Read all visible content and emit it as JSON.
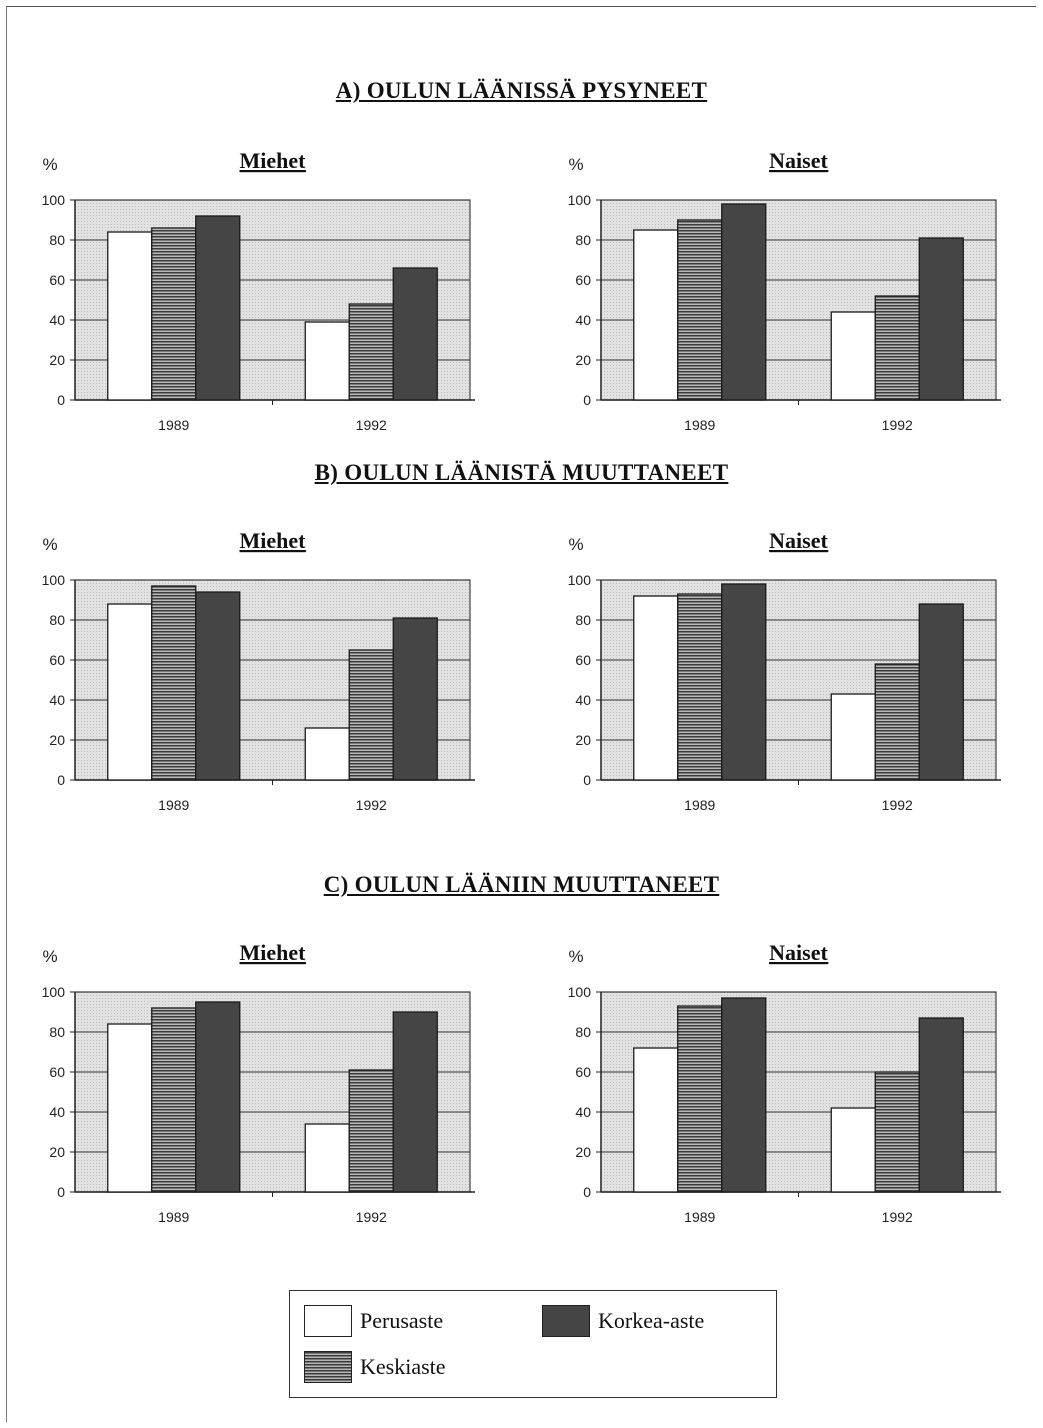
{
  "sections": [
    {
      "title": "A) OULUN LÄÄNISSÄ PYSYNEET",
      "charts": [
        {
          "subtitle": "Miehet",
          "ylabel": "%"
        },
        {
          "subtitle": "Naiset",
          "ylabel": "%"
        }
      ]
    },
    {
      "title": "B) OULUN LÄÄNISTÄ MUUTTANEET",
      "charts": [
        {
          "subtitle": "Miehet",
          "ylabel": "%"
        },
        {
          "subtitle": "Naiset",
          "ylabel": "%"
        }
      ]
    },
    {
      "title": "C) OULUN LÄÄNIIN MUUTTANEET",
      "charts": [
        {
          "subtitle": "Miehet",
          "ylabel": "%"
        },
        {
          "subtitle": "Naiset",
          "ylabel": "%"
        }
      ]
    }
  ],
  "legend": {
    "items": [
      {
        "label": "Perusaste",
        "color": "#ffffff"
      },
      {
        "label": "Keskiaste",
        "color": "#8a8a8a"
      },
      {
        "label": "Korkea-aste",
        "color": "#454545"
      }
    ]
  },
  "chart_data": [
    {
      "type": "bar",
      "section": "A) OULUN LÄÄNISSÄ PYSYNEET",
      "title": "Miehet",
      "ylabel": "%",
      "categories": [
        "1989",
        "1992"
      ],
      "ylim": [
        0,
        100
      ],
      "yticks": [
        0,
        20,
        40,
        60,
        80,
        100
      ],
      "grid": true,
      "series": [
        {
          "name": "Perusaste",
          "values": [
            84,
            39
          ]
        },
        {
          "name": "Keskiaste",
          "values": [
            86,
            48
          ]
        },
        {
          "name": "Korkea-aste",
          "values": [
            92,
            66
          ]
        }
      ]
    },
    {
      "type": "bar",
      "section": "A) OULUN LÄÄNISSÄ PYSYNEET",
      "title": "Naiset",
      "ylabel": "%",
      "categories": [
        "1989",
        "1992"
      ],
      "ylim": [
        0,
        100
      ],
      "yticks": [
        0,
        20,
        40,
        60,
        80,
        100
      ],
      "grid": true,
      "series": [
        {
          "name": "Perusaste",
          "values": [
            85,
            44
          ]
        },
        {
          "name": "Keskiaste",
          "values": [
            90,
            52
          ]
        },
        {
          "name": "Korkea-aste",
          "values": [
            98,
            81
          ]
        }
      ]
    },
    {
      "type": "bar",
      "section": "B) OULUN LÄÄNISTÄ MUUTTANEET",
      "title": "Miehet",
      "ylabel": "%",
      "categories": [
        "1989",
        "1992"
      ],
      "ylim": [
        0,
        100
      ],
      "yticks": [
        0,
        20,
        40,
        60,
        80,
        100
      ],
      "grid": true,
      "series": [
        {
          "name": "Perusaste",
          "values": [
            88,
            26
          ]
        },
        {
          "name": "Keskiaste",
          "values": [
            97,
            65
          ]
        },
        {
          "name": "Korkea-aste",
          "values": [
            94,
            81
          ]
        }
      ]
    },
    {
      "type": "bar",
      "section": "B) OULUN LÄÄNISTÄ MUUTTANEET",
      "title": "Naiset",
      "ylabel": "%",
      "categories": [
        "1989",
        "1992"
      ],
      "ylim": [
        0,
        100
      ],
      "yticks": [
        0,
        20,
        40,
        60,
        80,
        100
      ],
      "grid": true,
      "series": [
        {
          "name": "Perusaste",
          "values": [
            92,
            43
          ]
        },
        {
          "name": "Keskiaste",
          "values": [
            93,
            58
          ]
        },
        {
          "name": "Korkea-aste",
          "values": [
            98,
            88
          ]
        }
      ]
    },
    {
      "type": "bar",
      "section": "C) OULUN LÄÄNIIN MUUTTANEET",
      "title": "Miehet",
      "ylabel": "%",
      "categories": [
        "1989",
        "1992"
      ],
      "ylim": [
        0,
        100
      ],
      "yticks": [
        0,
        20,
        40,
        60,
        80,
        100
      ],
      "grid": true,
      "series": [
        {
          "name": "Perusaste",
          "values": [
            84,
            34
          ]
        },
        {
          "name": "Keskiaste",
          "values": [
            92,
            61
          ]
        },
        {
          "name": "Korkea-aste",
          "values": [
            95,
            90
          ]
        }
      ]
    },
    {
      "type": "bar",
      "section": "C) OULUN LÄÄNIIN MUUTTANEET",
      "title": "Naiset",
      "ylabel": "%",
      "categories": [
        "1989",
        "1992"
      ],
      "ylim": [
        0,
        100
      ],
      "yticks": [
        0,
        20,
        40,
        60,
        80,
        100
      ],
      "grid": true,
      "series": [
        {
          "name": "Perusaste",
          "values": [
            72,
            42
          ]
        },
        {
          "name": "Keskiaste",
          "values": [
            93,
            60
          ]
        },
        {
          "name": "Korkea-aste",
          "values": [
            97,
            87
          ]
        }
      ]
    }
  ]
}
